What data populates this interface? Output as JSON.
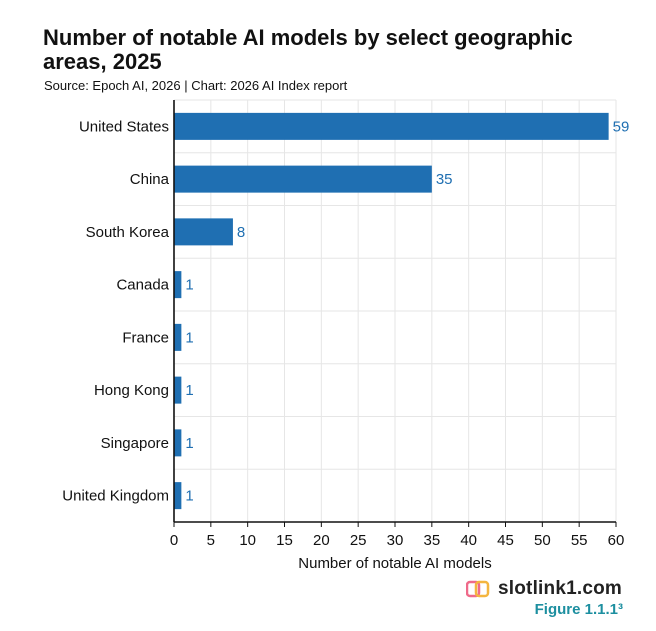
{
  "title": "Number of notable AI models by select geographic areas, 2025",
  "subtitle": "Source: Epoch AI, 2026 | Chart: 2026 AI Index report",
  "watermark": "slotlink1.com",
  "figure_label": "Figure 1.1.1³",
  "colors": {
    "bar": "#1f6fb2",
    "value_label": "#1f6fb2",
    "figure": "#1d8fa0",
    "grid": "#e6e6e6"
  },
  "chart_data": {
    "type": "bar",
    "orientation": "horizontal",
    "categories": [
      "United States",
      "China",
      "South Korea",
      "Canada",
      "France",
      "Hong Kong",
      "Singapore",
      "United Kingdom"
    ],
    "values": [
      59,
      35,
      8,
      1,
      1,
      1,
      1,
      1
    ],
    "xlabel": "Number of notable AI models",
    "ylabel": "",
    "xlim": [
      0,
      60
    ],
    "xticks": [
      0,
      5,
      10,
      15,
      20,
      25,
      30,
      35,
      40,
      45,
      50,
      55,
      60
    ],
    "grid": true
  }
}
